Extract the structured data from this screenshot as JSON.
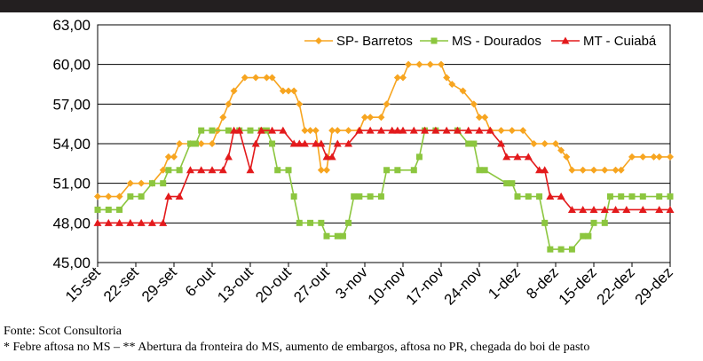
{
  "chart_data": {
    "type": "line",
    "source": "Fonte: Scot Consultoria",
    "footnote": "* Febre aftosa no MS – ** Abertura da fronteira do MS, aumento de embargos, aftosa no PR, chegada do boi de pasto",
    "xlim": [
      0,
      105
    ],
    "xticks": [
      {
        "value": 0,
        "label": "15-set"
      },
      {
        "value": 7,
        "label": "22-set"
      },
      {
        "value": 14,
        "label": "29-set"
      },
      {
        "value": 21,
        "label": "6-out"
      },
      {
        "value": 28,
        "label": "13-out"
      },
      {
        "value": 35,
        "label": "20-out"
      },
      {
        "value": 42,
        "label": "27-out"
      },
      {
        "value": 49,
        "label": "3-nov"
      },
      {
        "value": 56,
        "label": "10-nov"
      },
      {
        "value": 63,
        "label": "17-nov"
      },
      {
        "value": 70,
        "label": "24-nov"
      },
      {
        "value": 77,
        "label": "1-dez"
      },
      {
        "value": 84,
        "label": "8-dez"
      },
      {
        "value": 91,
        "label": "15-dez"
      },
      {
        "value": 98,
        "label": "22-dez"
      },
      {
        "value": 105,
        "label": "29-dez"
      }
    ],
    "ylim": [
      45,
      63
    ],
    "yticks": [
      {
        "value": 45,
        "label": "45,00"
      },
      {
        "value": 48,
        "label": "48,00"
      },
      {
        "value": 51,
        "label": "51,00"
      },
      {
        "value": 54,
        "label": "54,00"
      },
      {
        "value": 57,
        "label": "57,00"
      },
      {
        "value": 60,
        "label": "60,00"
      },
      {
        "value": 63,
        "label": "63,00"
      }
    ],
    "grid": true,
    "legend": "top-right",
    "series": [
      {
        "name": "SP- Barretos",
        "color": "#f7a520",
        "marker": "diamond",
        "x": [
          0,
          2,
          4,
          6,
          8,
          10,
          12,
          13,
          14,
          15,
          17,
          19,
          21,
          22,
          23,
          24,
          25,
          27,
          29,
          31,
          32,
          34,
          35,
          36,
          37,
          38,
          39,
          40,
          41,
          42,
          43,
          44,
          46,
          48,
          49,
          50,
          52,
          53,
          55,
          56,
          57,
          59,
          61,
          63,
          64,
          65,
          67,
          69,
          70,
          71,
          72,
          74,
          76,
          78,
          80,
          82,
          84,
          85,
          86,
          87,
          89,
          91,
          93,
          95,
          96,
          98,
          100,
          102,
          103,
          105
        ],
        "values": [
          50,
          50,
          50,
          51,
          51,
          51,
          52,
          53,
          53,
          54,
          54,
          54,
          54,
          55,
          56,
          57,
          58,
          59,
          59,
          59,
          59,
          58,
          58,
          58,
          57,
          55,
          55,
          55,
          52,
          52,
          55,
          55,
          55,
          55,
          56,
          56,
          56,
          57,
          59,
          59,
          60,
          60,
          60,
          60,
          59,
          58.5,
          58,
          57,
          56,
          56,
          55,
          55,
          55,
          55,
          54,
          54,
          54,
          53.5,
          53,
          52,
          52,
          52,
          52,
          52,
          52,
          53,
          53,
          53,
          53,
          53
        ]
      },
      {
        "name": "MS - Dourados",
        "color": "#8cc63f",
        "marker": "square",
        "x": [
          0,
          2,
          4,
          6,
          8,
          10,
          12,
          13,
          15,
          17,
          18,
          19,
          21,
          24,
          26,
          28,
          30,
          31,
          32,
          33,
          35,
          36,
          37,
          39,
          41,
          42,
          44,
          45,
          46,
          47,
          48,
          50,
          52,
          53,
          55,
          58,
          59,
          60,
          62,
          66,
          68,
          69,
          70,
          71,
          75,
          76,
          77,
          79,
          81,
          82,
          83,
          85,
          87,
          89,
          90,
          91,
          93,
          94,
          96,
          98,
          100,
          103,
          105
        ],
        "values": [
          49,
          49,
          49,
          50,
          50,
          51,
          51,
          52,
          52,
          54,
          54,
          55,
          55,
          55,
          55,
          55,
          55,
          55,
          54,
          52,
          52,
          50,
          48,
          48,
          48,
          47,
          47,
          47,
          48,
          50,
          50,
          50,
          50,
          52,
          52,
          52,
          53,
          55,
          55,
          55,
          54,
          54,
          52,
          52,
          51,
          51,
          50,
          50,
          50,
          48,
          46,
          46,
          46,
          47,
          47,
          48,
          48,
          50,
          50,
          50,
          50,
          50,
          50
        ]
      },
      {
        "name": "MT - Cuiabá",
        "color": "#e31a1c",
        "marker": "triangle",
        "x": [
          0,
          2,
          4,
          6,
          8,
          10,
          12,
          13,
          15,
          17,
          19,
          21,
          23,
          24,
          25,
          26,
          28,
          29,
          30,
          32,
          34,
          36,
          37,
          38,
          40,
          41,
          42,
          43,
          44,
          46,
          48,
          50,
          52,
          54,
          55,
          56,
          58,
          60,
          62,
          64,
          66,
          68,
          70,
          72,
          74,
          75,
          77,
          79,
          81,
          82,
          83,
          85,
          87,
          89,
          91,
          93,
          95,
          97,
          100,
          103,
          105
        ],
        "values": [
          48,
          48,
          48,
          48,
          48,
          48,
          48,
          50,
          50,
          52,
          52,
          52,
          52,
          53,
          55,
          55,
          52,
          54,
          55,
          55,
          55,
          54,
          54,
          54,
          54,
          54,
          53,
          53,
          54,
          54,
          55,
          55,
          55,
          55,
          55,
          55,
          55,
          55,
          55,
          55,
          55,
          55,
          55,
          55,
          54,
          53,
          53,
          53,
          52,
          52,
          50,
          50,
          49,
          49,
          49,
          49,
          49,
          49,
          49,
          49,
          49
        ]
      }
    ]
  }
}
